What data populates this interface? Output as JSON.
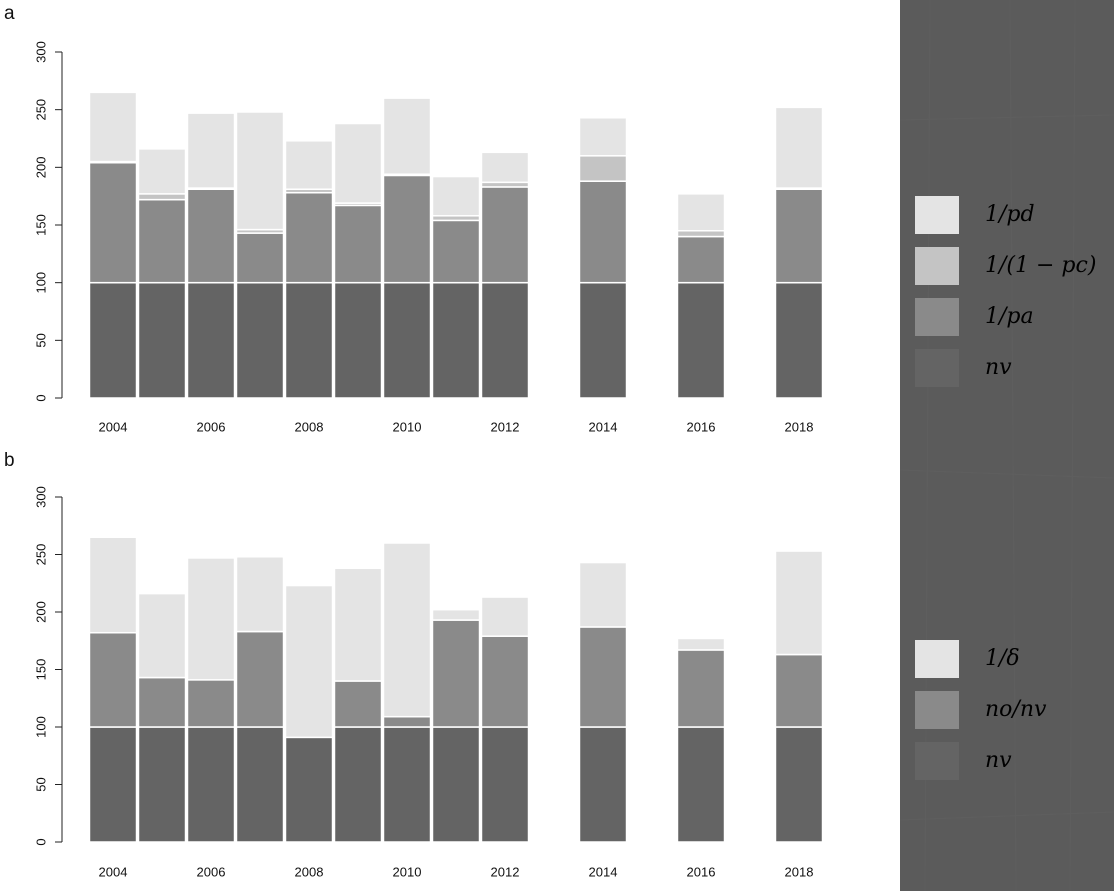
{
  "chart_data": [
    {
      "type": "bar",
      "stacked": true,
      "panel_label": "a",
      "legend": "right",
      "x": [
        2004,
        2005,
        2006,
        2007,
        2008,
        2009,
        2010,
        2011,
        2012,
        2014,
        2016,
        2018
      ],
      "xticks": [
        2004,
        2006,
        2008,
        2010,
        2012,
        2014,
        2016,
        2018
      ],
      "xlim": [
        2003.5,
        2018.5
      ],
      "ylim": [
        0,
        300
      ],
      "yticks": [
        0,
        50,
        100,
        150,
        200,
        250,
        300
      ],
      "series": [
        {
          "name": "nv",
          "color": "#646464",
          "values": [
            100,
            100,
            100,
            100,
            100,
            100,
            100,
            100,
            100,
            100,
            100,
            100
          ]
        },
        {
          "name": "1/pa",
          "color": "#8a8a8a",
          "values": [
            104,
            72,
            81,
            43,
            78,
            67,
            93,
            54,
            83,
            88,
            40,
            81
          ]
        },
        {
          "name": "1/(1 − pc)",
          "color": "#c4c4c4",
          "values": [
            1,
            5,
            1,
            3,
            3,
            2,
            1,
            4,
            4,
            22,
            5,
            1
          ]
        },
        {
          "name": "1/pd",
          "color": "#e4e4e4",
          "values": [
            60,
            39,
            65,
            102,
            42,
            69,
            66,
            34,
            26,
            33,
            32,
            70
          ]
        }
      ]
    },
    {
      "type": "bar",
      "stacked": true,
      "panel_label": "b",
      "legend": "right",
      "x": [
        2004,
        2005,
        2006,
        2007,
        2008,
        2009,
        2010,
        2011,
        2012,
        2014,
        2016,
        2018
      ],
      "xticks": [
        2004,
        2006,
        2008,
        2010,
        2012,
        2014,
        2016,
        2018
      ],
      "xlim": [
        2003.5,
        2018.5
      ],
      "ylim": [
        0,
        300
      ],
      "yticks": [
        0,
        50,
        100,
        150,
        200,
        250,
        300
      ],
      "series": [
        {
          "name": "nv",
          "color": "#646464",
          "values": [
            100,
            100,
            100,
            100,
            91,
            100,
            100,
            100,
            100,
            100,
            100,
            100
          ]
        },
        {
          "name": "no/nv",
          "color": "#8a8a8a",
          "values": [
            82,
            43,
            41,
            83,
            0,
            40,
            9,
            93,
            79,
            87,
            67,
            63
          ]
        },
        {
          "name": "1/δ",
          "color": "#e4e4e4",
          "values": [
            83,
            73,
            106,
            65,
            132,
            98,
            151,
            9,
            34,
            56,
            10,
            90
          ]
        }
      ]
    }
  ]
}
